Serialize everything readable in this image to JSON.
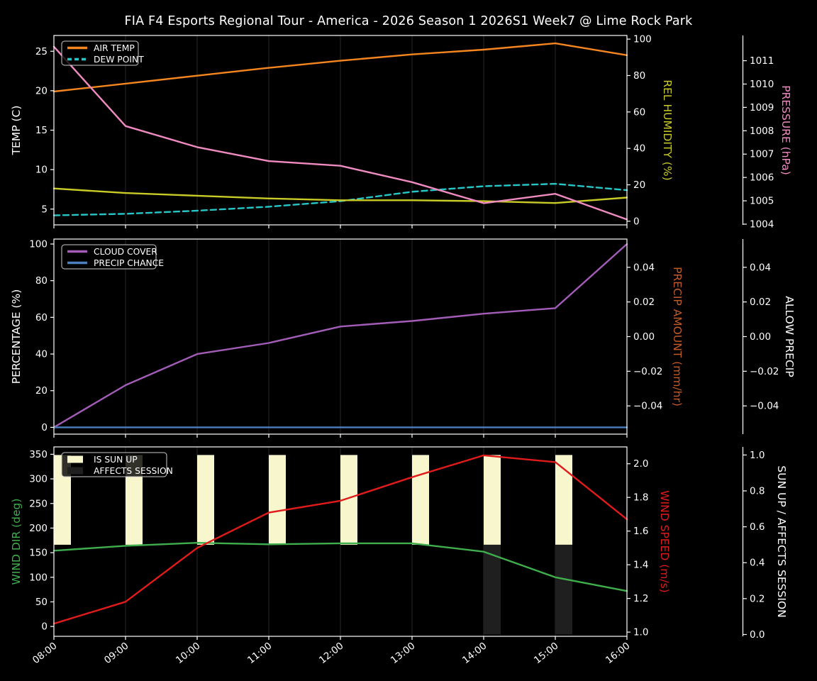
{
  "title": "FIA F4 Esports Regional Tour - America - 2026 Season 1 2026S1 Week7 @ Lime Rock Park",
  "x_labels": [
    "08:00",
    "09:00",
    "10:00",
    "11:00",
    "12:00",
    "13:00",
    "14:00",
    "15:00",
    "16:00"
  ],
  "colors": {
    "background": "#000000",
    "text": "#ffffff",
    "grid": "#272727",
    "spine": "#ffffff",
    "air_temp": "#f5861f",
    "dew_point": "#26c6c6",
    "rel_humidity": "#c9cb27",
    "pressure": "#ef8bc1",
    "cloud_cover": "#a35db8",
    "precip_chance": "#4c7fbf",
    "precip_amount_label": "#c25b28",
    "wind_dir": "#3fae4c",
    "wind_speed": "#e11a1a",
    "sun_up_bar": "#f7f6cd",
    "affects_session_bar": "#1f1f1f"
  },
  "chart_data": [
    {
      "name": "temperature",
      "type": "line",
      "categories": [
        "08:00",
        "09:00",
        "10:00",
        "11:00",
        "12:00",
        "13:00",
        "14:00",
        "15:00",
        "16:00"
      ],
      "left_axis": {
        "label": "TEMP (C)",
        "color": "#ffffff",
        "range": [
          3.0,
          27.0
        ],
        "ticks": [
          5,
          10,
          15,
          20,
          25
        ],
        "tick_labels": [
          "5",
          "10",
          "15",
          "20",
          "25"
        ]
      },
      "right_axis_1": {
        "label": "REL HUMIDITY (%)",
        "color": "#c9cb27",
        "range": [
          -2,
          102
        ],
        "ticks": [
          0,
          20,
          40,
          60,
          80,
          100
        ],
        "tick_labels": [
          "0",
          "20",
          "40",
          "60",
          "80",
          "100"
        ]
      },
      "right_axis_2": {
        "label": "PRESSURE (hPa)",
        "color": "#ef8bc1",
        "range": [
          1003.97,
          1012.08
        ],
        "ticks": [
          1004,
          1005,
          1006,
          1007,
          1008,
          1009,
          1010,
          1011
        ],
        "tick_labels": [
          "1004",
          "1005",
          "1006",
          "1007",
          "1008",
          "1009",
          "1010",
          "1011"
        ]
      },
      "series": [
        {
          "label": "AIR TEMP",
          "axis": "left",
          "style": "solid",
          "color": "#f5861f",
          "values": [
            19.9,
            20.9,
            21.9,
            22.9,
            23.8,
            24.6,
            25.2,
            26.0,
            24.5
          ]
        },
        {
          "label": "DEW POINT",
          "axis": "left",
          "style": "dashed",
          "color": "#26c6c6",
          "values": [
            4.2,
            4.4,
            4.8,
            5.3,
            6.0,
            7.2,
            7.9,
            8.2,
            7.4
          ]
        },
        {
          "label": "REL HUMIDITY",
          "axis": "right1",
          "style": "solid",
          "color": "#c9cb27",
          "values": [
            18,
            15.5,
            14,
            12.5,
            11.5,
            11.5,
            11,
            10,
            13
          ]
        },
        {
          "label": "PRESSURE",
          "axis": "right2",
          "style": "solid",
          "color": "#ef8bc1",
          "values": [
            1011.6,
            1008.2,
            1007.3,
            1006.7,
            1006.5,
            1005.8,
            1004.9,
            1005.3,
            1004.2
          ]
        }
      ],
      "legend": [
        "AIR TEMP",
        "DEW POINT"
      ]
    },
    {
      "name": "precipitation",
      "type": "line",
      "categories": [
        "08:00",
        "09:00",
        "10:00",
        "11:00",
        "12:00",
        "13:00",
        "14:00",
        "15:00",
        "16:00"
      ],
      "left_axis": {
        "label": "PERCENTAGE (%)",
        "color": "#ffffff",
        "range": [
          -3.7,
          102.7
        ],
        "ticks": [
          0,
          20,
          40,
          60,
          80,
          100
        ],
        "tick_labels": [
          "0",
          "20",
          "40",
          "60",
          "80",
          "100"
        ]
      },
      "right_axis_1": {
        "label": "PRECIP AMOUNT (mm/hr)",
        "color": "#c25b28",
        "range": [
          -0.0563,
          0.0563
        ],
        "ticks": [
          -0.04,
          -0.02,
          0,
          0.02,
          0.04
        ],
        "tick_labels": [
          "−0.04",
          "−0.02",
          "0.00",
          "0.02",
          "0.04"
        ]
      },
      "right_axis_2": {
        "label": "ALLOW PRECIP",
        "color": "#ffffff",
        "range": [
          -0.0563,
          0.0563
        ],
        "ticks": [
          -0.04,
          -0.02,
          0,
          0.02,
          0.04
        ],
        "tick_labels": [
          "−0.04",
          "−0.02",
          "0.00",
          "0.02",
          "0.04"
        ]
      },
      "series": [
        {
          "label": "CLOUD COVER",
          "axis": "left",
          "style": "solid",
          "color": "#a35db8",
          "values": [
            0,
            23,
            40,
            46,
            55,
            58,
            62,
            65,
            100
          ]
        },
        {
          "label": "PRECIP CHANCE",
          "axis": "left",
          "style": "solid",
          "color": "#4c7fbf",
          "values": [
            0,
            0,
            0,
            0,
            0,
            0,
            0,
            0,
            0
          ]
        }
      ],
      "legend": [
        "CLOUD COVER",
        "PRECIP CHANCE"
      ]
    },
    {
      "name": "wind-sun",
      "type": "line-bar",
      "categories": [
        "08:00",
        "09:00",
        "10:00",
        "11:00",
        "12:00",
        "13:00",
        "14:00",
        "15:00",
        "16:00"
      ],
      "left_axis": {
        "label": "WIND DIR (deg)",
        "color": "#3fae4c",
        "range": [
          -20,
          365
        ],
        "ticks": [
          0,
          50,
          100,
          150,
          200,
          250,
          300,
          350
        ],
        "tick_labels": [
          "0",
          "50",
          "100",
          "150",
          "200",
          "250",
          "300",
          "350"
        ]
      },
      "right_axis_1": {
        "label": "WIND SPEED (m/s)",
        "color": "#e11a1a",
        "range": [
          0.975,
          2.1
        ],
        "ticks": [
          1.0,
          1.2,
          1.4,
          1.6,
          1.8,
          2.0
        ],
        "tick_labels": [
          "1.0",
          "1.2",
          "1.4",
          "1.6",
          "1.8",
          "2.0"
        ]
      },
      "right_axis_2": {
        "label": "SUN UP / AFFECTS SESSION",
        "color": "#ffffff",
        "range": [
          -0.01,
          1.045
        ],
        "ticks": [
          0,
          0.2,
          0.4,
          0.6,
          0.8,
          1.0
        ],
        "tick_labels": [
          "0.0",
          "0.2",
          "0.4",
          "0.6",
          "0.8",
          "1.0"
        ]
      },
      "bars": [
        {
          "label": "IS SUN UP",
          "color": "#f7f6cd",
          "axis": "right2",
          "from": 0.5,
          "to": 1.0,
          "present": [
            true,
            true,
            true,
            true,
            true,
            true,
            true,
            true,
            false
          ]
        },
        {
          "label": "AFFECTS SESSION",
          "color": "#1f1f1f",
          "axis": "right2",
          "from": 0.0,
          "to": 0.5,
          "present": [
            false,
            false,
            false,
            false,
            false,
            false,
            true,
            true,
            false
          ]
        }
      ],
      "series": [
        {
          "label": "WIND DIR",
          "axis": "left",
          "style": "solid",
          "color": "#3fae4c",
          "values": [
            154,
            164,
            170,
            167,
            169,
            169,
            152,
            100,
            72
          ]
        },
        {
          "label": "WIND SPEED",
          "axis": "right1",
          "style": "solid",
          "color": "#e11a1a",
          "values": [
            1.05,
            1.18,
            1.5,
            1.71,
            1.78,
            1.92,
            2.05,
            2.01,
            1.67
          ]
        }
      ],
      "legend": [
        "IS SUN UP",
        "AFFECTS SESSION"
      ]
    }
  ]
}
